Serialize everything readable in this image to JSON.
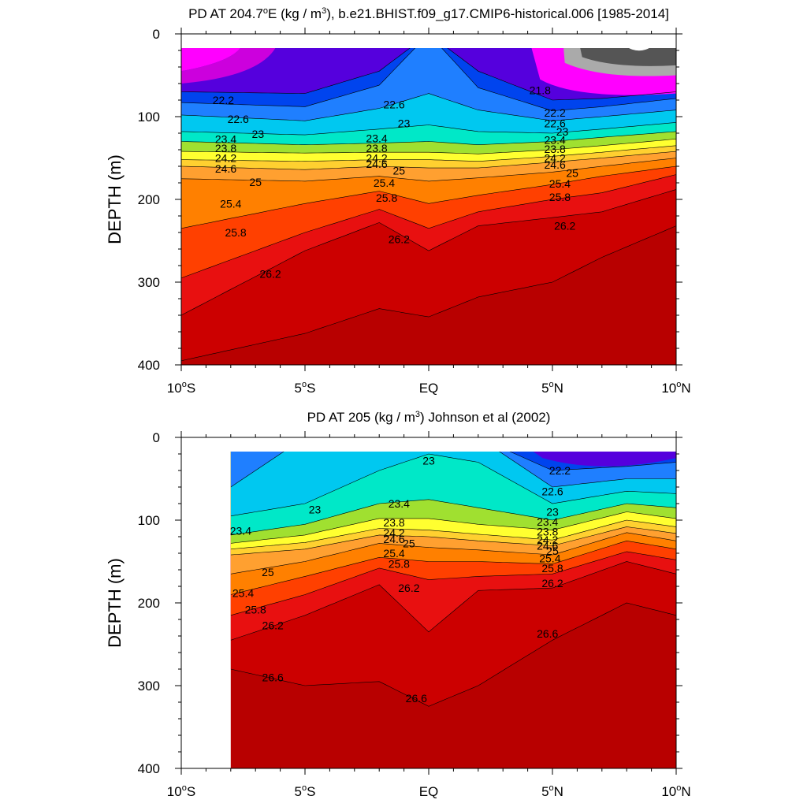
{
  "chart_data": [
    {
      "type": "contour",
      "title": "PD AT 204.7°E (kg / m³), b.e21.BHIST.f09_g17.CMIP6-historical.006 [1985-2014]",
      "title_parts": {
        "pre": "PD AT 204.7",
        "sup1": "o",
        "mid": "E (kg / m",
        "sup2": "3",
        "post": "), b.e21.BHIST.f09_g17.CMIP6-historical.006 [1985-2014]"
      },
      "ylabel": "DEPTH (m)",
      "xlabel": "",
      "xlim": [
        -10,
        10
      ],
      "ylim": [
        400,
        0
      ],
      "x_ticks": [
        {
          "value": -10,
          "pre": "10",
          "sup": "o",
          "post": "S"
        },
        {
          "value": -5,
          "pre": "5",
          "sup": "o",
          "post": "S"
        },
        {
          "value": 0,
          "pre": "EQ",
          "sup": "",
          "post": ""
        },
        {
          "value": 5,
          "pre": "5",
          "sup": "o",
          "post": "N"
        },
        {
          "value": 10,
          "pre": "10",
          "sup": "o",
          "post": "N"
        }
      ],
      "y_ticks": [
        "0",
        "100",
        "200",
        "300",
        "400"
      ],
      "y_tick_values": [
        0,
        100,
        200,
        300,
        400
      ],
      "data_x_range": [
        -10,
        10
      ],
      "color_levels": [
        21.4,
        21.6,
        21.8,
        22.0,
        22.2,
        22.4,
        22.6,
        23.0,
        23.4,
        23.8,
        24.2,
        24.6,
        25.0,
        25.4,
        25.8,
        26.2,
        26.6,
        27.0
      ],
      "color_fills": [
        "#555555",
        "#aaaaaa",
        "#ff00ff",
        "#cc00dd",
        "#9900cc",
        "#5500dd",
        "#0000ff",
        "#0044ee",
        "#1f7fff",
        "#00c8f0",
        "#00e8c8",
        "#30d060",
        "#a0e030",
        "#ffff30",
        "#ffd030",
        "#ffa030",
        "#ff8000",
        "#ff4000",
        "#e81010",
        "#cc0000"
      ],
      "surface_profile": [
        {
          "x": -10,
          "levels": {
            "22.0": 70,
            "22.2": 83,
            "22.6": 98,
            "23.0": 118,
            "23.4": 130,
            "23.8": 142,
            "24.2": 152,
            "24.6": 160,
            "25.0": 175,
            "25.4": 235,
            "25.8": 295,
            "26.2": 340,
            "26.6": 395
          }
        },
        {
          "x": -5,
          "levels": {
            "22.0": 72,
            "22.2": 88,
            "22.6": 105,
            "23.0": 122,
            "23.4": 134,
            "23.8": 144,
            "24.2": 154,
            "24.6": 164,
            "25.0": 178,
            "25.4": 205,
            "25.8": 240,
            "26.2": 262,
            "26.6": 362
          }
        },
        {
          "x": -2,
          "levels": {
            "22.0": 45,
            "22.2": 62,
            "22.6": 90,
            "23.0": 115,
            "23.4": 132,
            "23.8": 143,
            "24.2": 152,
            "24.6": 160,
            "25.0": 172,
            "25.4": 190,
            "25.8": 212,
            "26.2": 228,
            "26.6": 332
          }
        },
        {
          "x": 0,
          "levels": {
            "22.0": 0,
            "22.2": 0,
            "22.6": 72,
            "23.0": 110,
            "23.4": 130,
            "23.8": 143,
            "24.2": 152,
            "24.6": 162,
            "25.0": 178,
            "25.4": 205,
            "25.8": 235,
            "26.2": 262,
            "26.6": 342
          }
        },
        {
          "x": 2,
          "levels": {
            "22.0": 45,
            "22.2": 65,
            "22.6": 92,
            "23.0": 118,
            "23.4": 134,
            "23.8": 145,
            "24.2": 154,
            "24.6": 162,
            "25.0": 174,
            "25.4": 195,
            "25.8": 215,
            "26.2": 232,
            "26.6": 318
          }
        },
        {
          "x": 5,
          "levels": {
            "22.0": 80,
            "22.2": 93,
            "22.6": 105,
            "23.0": 120,
            "23.4": 130,
            "23.8": 140,
            "24.2": 148,
            "24.6": 155,
            "25.0": 167,
            "25.4": 182,
            "25.8": 200,
            "26.2": 222,
            "26.6": 300
          }
        },
        {
          "x": 7,
          "levels": {
            "22.0": 78,
            "22.2": 88,
            "22.6": 100,
            "23.0": 115,
            "23.4": 125,
            "23.8": 135,
            "24.2": 143,
            "24.6": 150,
            "25.0": 160,
            "25.4": 172,
            "25.8": 192,
            "26.2": 215,
            "26.6": 270
          }
        },
        {
          "x": 10,
          "levels": {
            "22.0": 70,
            "22.2": 78,
            "22.6": 92,
            "23.0": 107,
            "23.4": 118,
            "23.8": 127,
            "24.2": 135,
            "24.6": 142,
            "25.0": 150,
            "25.4": 160,
            "25.8": 170,
            "26.2": 188,
            "26.6": 232
          }
        }
      ],
      "contour_labels": [
        {
          "text": "22.2",
          "x": -8.3,
          "y": 80
        },
        {
          "text": "22.6",
          "x": -7.7,
          "y": 103
        },
        {
          "text": "23",
          "x": -6.9,
          "y": 121
        },
        {
          "text": "23.4",
          "x": -8.2,
          "y": 127
        },
        {
          "text": "23.8",
          "x": -8.2,
          "y": 138
        },
        {
          "text": "24.2",
          "x": -8.2,
          "y": 150
        },
        {
          "text": "24.6",
          "x": -8.2,
          "y": 163
        },
        {
          "text": "25",
          "x": -7.0,
          "y": 179
        },
        {
          "text": "25.4",
          "x": -8.0,
          "y": 205
        },
        {
          "text": "25.8",
          "x": -7.8,
          "y": 240
        },
        {
          "text": "26.2",
          "x": -6.4,
          "y": 290
        },
        {
          "text": "22.6",
          "x": -1.4,
          "y": 85
        },
        {
          "text": "23",
          "x": -1.0,
          "y": 108
        },
        {
          "text": "23.4",
          "x": -2.1,
          "y": 126
        },
        {
          "text": "23.8",
          "x": -2.1,
          "y": 138
        },
        {
          "text": "24.2",
          "x": -2.1,
          "y": 150
        },
        {
          "text": "24.6",
          "x": -2.1,
          "y": 157
        },
        {
          "text": "25",
          "x": -1.2,
          "y": 165
        },
        {
          "text": "25.4",
          "x": -1.8,
          "y": 180
        },
        {
          "text": "25.8",
          "x": -1.7,
          "y": 198
        },
        {
          "text": "26.2",
          "x": -1.2,
          "y": 248
        },
        {
          "text": "21.8",
          "x": 4.5,
          "y": 68
        },
        {
          "text": "22.2",
          "x": 5.1,
          "y": 95
        },
        {
          "text": "22.6",
          "x": 5.1,
          "y": 108
        },
        {
          "text": "23",
          "x": 5.4,
          "y": 118
        },
        {
          "text": "23.4",
          "x": 5.1,
          "y": 128
        },
        {
          "text": "23.8",
          "x": 5.1,
          "y": 139
        },
        {
          "text": "24.2",
          "x": 5.1,
          "y": 150
        },
        {
          "text": "24.6",
          "x": 5.1,
          "y": 158
        },
        {
          "text": "25",
          "x": 5.8,
          "y": 168
        },
        {
          "text": "25.4",
          "x": 5.3,
          "y": 181
        },
        {
          "text": "25.8",
          "x": 5.3,
          "y": 197
        },
        {
          "text": "26.2",
          "x": 5.5,
          "y": 232
        }
      ]
    },
    {
      "type": "contour",
      "title": "PD AT 205 (kg / m³) Johnson et al (2002)",
      "title_parts": {
        "pre": "PD AT 205 (kg / m",
        "sup1": "3",
        "mid": ") Johnson et al (2002)",
        "sup2": "",
        "post": ""
      },
      "ylabel": "DEPTH (m)",
      "xlabel": "",
      "xlim": [
        -10,
        10
      ],
      "ylim": [
        400,
        0
      ],
      "x_ticks": [
        {
          "value": -10,
          "pre": "10",
          "sup": "o",
          "post": "S"
        },
        {
          "value": -5,
          "pre": "5",
          "sup": "o",
          "post": "S"
        },
        {
          "value": 0,
          "pre": "EQ",
          "sup": "",
          "post": ""
        },
        {
          "value": 5,
          "pre": "5",
          "sup": "o",
          "post": "N"
        },
        {
          "value": 10,
          "pre": "10",
          "sup": "o",
          "post": "N"
        }
      ],
      "y_ticks": [
        "0",
        "100",
        "200",
        "300",
        "400"
      ],
      "y_tick_values": [
        0,
        100,
        200,
        300,
        400
      ],
      "data_x_range": [
        -8,
        10
      ],
      "color_levels": [
        21.4,
        21.6,
        21.8,
        22.0,
        22.2,
        22.4,
        22.6,
        23.0,
        23.4,
        23.8,
        24.2,
        24.6,
        25.0,
        25.4,
        25.8,
        26.2,
        26.6,
        27.0
      ],
      "color_fills": [
        "#555555",
        "#aaaaaa",
        "#ff00ff",
        "#cc00dd",
        "#9900cc",
        "#5500dd",
        "#0000ff",
        "#0044ee",
        "#1f7fff",
        "#00c8f0",
        "#00e8c8",
        "#30d060",
        "#a0e030",
        "#ffff30",
        "#ffd030",
        "#ffa030",
        "#ff8000",
        "#ff4000",
        "#e81010",
        "#cc0000"
      ],
      "surface_profile": [
        {
          "x": -8,
          "levels": {
            "22.2": 0,
            "22.6": 60,
            "23.0": 95,
            "23.4": 118,
            "23.8": 128,
            "24.2": 135,
            "24.6": 142,
            "25.0": 165,
            "25.4": 190,
            "25.8": 215,
            "26.2": 245,
            "26.6": 280
          }
        },
        {
          "x": -5,
          "levels": {
            "22.2": 0,
            "22.6": 0,
            "23.0": 80,
            "23.4": 105,
            "23.8": 118,
            "24.2": 127,
            "24.6": 135,
            "25.0": 150,
            "25.4": 168,
            "25.8": 190,
            "26.2": 215,
            "26.6": 300
          }
        },
        {
          "x": -2,
          "levels": {
            "22.2": 0,
            "22.6": 0,
            "23.0": 40,
            "23.4": 80,
            "23.8": 98,
            "24.2": 110,
            "24.6": 118,
            "25.0": 128,
            "25.4": 145,
            "25.8": 158,
            "26.2": 178,
            "26.6": 295
          }
        },
        {
          "x": 0,
          "levels": {
            "22.2": 0,
            "22.6": 0,
            "23.0": 20,
            "23.4": 75,
            "23.8": 98,
            "24.2": 112,
            "24.6": 120,
            "25.0": 133,
            "25.4": 150,
            "25.8": 172,
            "26.2": 235,
            "26.6": 325
          }
        },
        {
          "x": 2,
          "levels": {
            "22.2": 0,
            "22.6": 0,
            "23.0": 30,
            "23.4": 85,
            "23.8": 105,
            "24.2": 117,
            "24.6": 125,
            "25.0": 136,
            "25.4": 150,
            "25.8": 168,
            "26.2": 185,
            "26.6": 300
          }
        },
        {
          "x": 5,
          "levels": {
            "22.2": 40,
            "22.6": 60,
            "23.0": 80,
            "23.4": 100,
            "23.8": 112,
            "24.2": 124,
            "24.6": 131,
            "25.0": 142,
            "25.4": 153,
            "25.8": 165,
            "26.2": 182,
            "26.6": 245
          }
        },
        {
          "x": 8,
          "levels": {
            "22.2": 35,
            "22.6": 50,
            "23.0": 65,
            "23.4": 80,
            "23.8": 90,
            "24.2": 100,
            "24.6": 108,
            "25.0": 115,
            "25.4": 125,
            "25.8": 138,
            "26.2": 150,
            "26.6": 200
          }
        },
        {
          "x": 10,
          "levels": {
            "22.2": 30,
            "22.6": 50,
            "23.0": 68,
            "23.4": 85,
            "23.8": 98,
            "24.2": 108,
            "24.6": 116,
            "25.0": 125,
            "25.4": 135,
            "25.8": 148,
            "26.2": 165,
            "26.6": 215
          }
        }
      ],
      "contour_labels": [
        {
          "text": "23",
          "x": 0.0,
          "y": 28
        },
        {
          "text": "22.2",
          "x": 5.3,
          "y": 40
        },
        {
          "text": "22.6",
          "x": 5.0,
          "y": 65
        },
        {
          "text": "23",
          "x": -4.6,
          "y": 87
        },
        {
          "text": "23.4",
          "x": -1.2,
          "y": 80
        },
        {
          "text": "23",
          "x": 5.0,
          "y": 90
        },
        {
          "text": "23.4",
          "x": -7.6,
          "y": 113
        },
        {
          "text": "23.8",
          "x": -1.4,
          "y": 103
        },
        {
          "text": "24.2",
          "x": -1.4,
          "y": 115
        },
        {
          "text": "24.6",
          "x": -1.4,
          "y": 123
        },
        {
          "text": "25",
          "x": -0.8,
          "y": 128
        },
        {
          "text": "25.4",
          "x": -1.4,
          "y": 140
        },
        {
          "text": "25.8",
          "x": -1.2,
          "y": 153
        },
        {
          "text": "26.2",
          "x": -0.8,
          "y": 182
        },
        {
          "text": "23.4",
          "x": 4.8,
          "y": 102
        },
        {
          "text": "23.8",
          "x": 4.8,
          "y": 114
        },
        {
          "text": "24.2",
          "x": 4.8,
          "y": 124
        },
        {
          "text": "24.6",
          "x": 4.8,
          "y": 131
        },
        {
          "text": "25",
          "x": 5.0,
          "y": 137
        },
        {
          "text": "25.4",
          "x": 4.9,
          "y": 146
        },
        {
          "text": "25.8",
          "x": 5.0,
          "y": 158
        },
        {
          "text": "26.2",
          "x": 5.0,
          "y": 176
        },
        {
          "text": "25",
          "x": -6.5,
          "y": 163
        },
        {
          "text": "25.4",
          "x": -7.5,
          "y": 188
        },
        {
          "text": "25.8",
          "x": -7.0,
          "y": 208
        },
        {
          "text": "26.2",
          "x": -6.3,
          "y": 227
        },
        {
          "text": "26.6",
          "x": -6.3,
          "y": 290
        },
        {
          "text": "26.6",
          "x": -0.5,
          "y": 315
        },
        {
          "text": "26.6",
          "x": 4.8,
          "y": 237
        }
      ]
    }
  ]
}
